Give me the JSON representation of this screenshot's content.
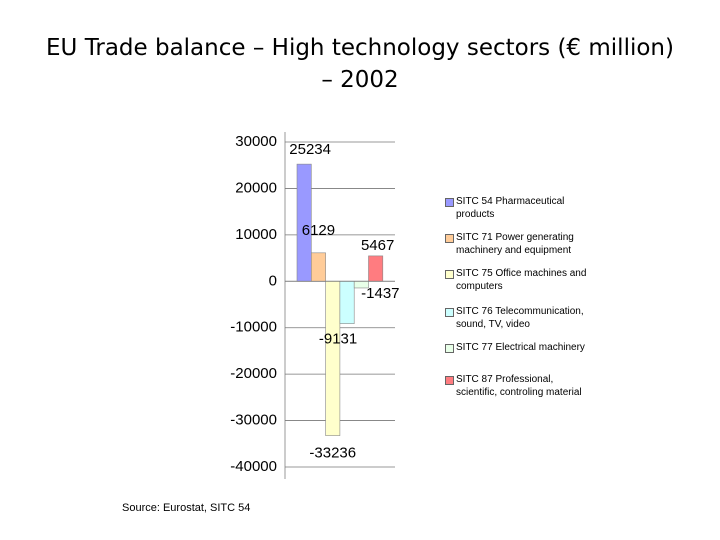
{
  "chart_data": {
    "type": "bar",
    "title": "EU Trade balance – High technology sectors (€ million) – 2002",
    "source": "Source: Eurostat, SITC 54",
    "series": [
      {
        "name": "SITC 54 Pharmaceutical products",
        "color": "#9999ff",
        "values": [
          25234
        ]
      },
      {
        "name": "SITC 71 Power generating machinery and equipment",
        "color": "#ffcc99",
        "values": [
          6129
        ]
      },
      {
        "name": "SITC 75 Office machines and computers",
        "color": "#ffffcc",
        "values": [
          -33236
        ]
      },
      {
        "name": "SITC 76 Telecommunication, sound, TV, video",
        "color": "#ccffff",
        "values": [
          -9131
        ]
      },
      {
        "name": "SITC 77 Electrical machinery",
        "color": "#e8ffe8",
        "values": [
          -1437
        ]
      },
      {
        "name": "SITC 87 Professional, scientific, controling material",
        "color": "#ff7c80",
        "values": [
          5467
        ]
      }
    ],
    "ylim": [
      -40000,
      30000
    ],
    "yticks": [
      -40000,
      -30000,
      -20000,
      -10000,
      0,
      10000,
      20000,
      30000
    ],
    "grid": true
  }
}
